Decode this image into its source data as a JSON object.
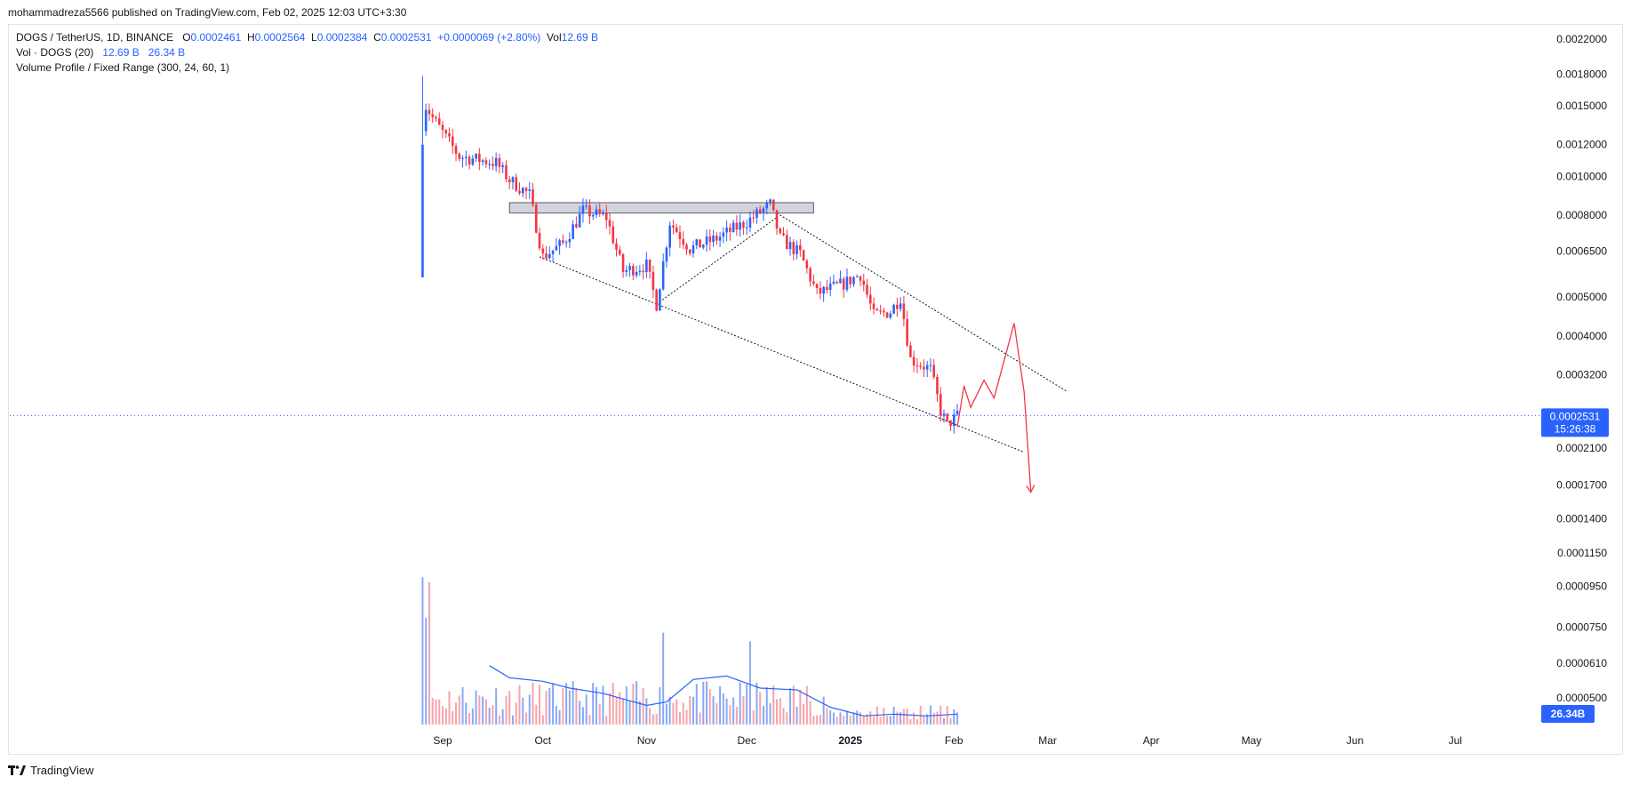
{
  "header": {
    "published_line": "mohammadreza5566 published on TradingView.com, Feb 02, 2025 12:03 UTC+3:30"
  },
  "legend": {
    "symbol": "DOGS / TetherUS, 1D, BINANCE",
    "open_label": "O",
    "open": "0.0002461",
    "high_label": "H",
    "high": "0.0002564",
    "low_label": "L",
    "low": "0.0002384",
    "close_label": "C",
    "close": "0.0002531",
    "change": "+0.0000069 (+2.80%)",
    "vol_label": "Vol",
    "vol": "12.69 B",
    "vol_indicator": "Vol · DOGS (20)",
    "vol_value": "12.69 B",
    "vol_ma": "26.34 B",
    "volume_profile": "Volume Profile / Fixed Range (300, 24, 60, 1)"
  },
  "chart_data": {
    "type": "candlestick",
    "symbol": "DOGS / TetherUS",
    "interval": "1D",
    "exchange": "BINANCE",
    "price_scale": "log",
    "y_ticks": [
      "0.0022000",
      "0.0018000",
      "0.0015000",
      "0.0012000",
      "0.0010000",
      "0.0008000",
      "0.0006500",
      "0.0005000",
      "0.0004000",
      "0.0003200",
      "0.0002100",
      "0.0001700",
      "0.0001400",
      "0.0001150",
      "0.0000950",
      "0.0000750",
      "0.0000610",
      "0.0000500"
    ],
    "x_ticks": [
      "Sep",
      "Oct",
      "Nov",
      "Dec",
      "2025",
      "Feb",
      "Mar",
      "Apr",
      "May",
      "Jun",
      "Jul"
    ],
    "last_price": "0.0002531",
    "countdown": "15:26:38",
    "volume_ma_value": "26.34B",
    "price_path": [
      {
        "date": "2024-08-26",
        "price": 0.00135
      },
      {
        "date": "2024-08-27",
        "price": 0.0015
      },
      {
        "date": "2024-08-29",
        "price": 0.0014
      },
      {
        "date": "2024-09-02",
        "price": 0.00125
      },
      {
        "date": "2024-09-06",
        "price": 0.00112
      },
      {
        "date": "2024-09-12",
        "price": 0.0011
      },
      {
        "date": "2024-09-17",
        "price": 0.00108
      },
      {
        "date": "2024-09-21",
        "price": 0.00098
      },
      {
        "date": "2024-09-27",
        "price": 0.0009
      },
      {
        "date": "2024-10-01",
        "price": 0.00063
      },
      {
        "date": "2024-10-07",
        "price": 0.00068
      },
      {
        "date": "2024-10-13",
        "price": 0.00082
      },
      {
        "date": "2024-10-20",
        "price": 0.00079
      },
      {
        "date": "2024-10-25",
        "price": 0.00058
      },
      {
        "date": "2024-11-01",
        "price": 0.0006
      },
      {
        "date": "2024-11-04",
        "price": 0.00048
      },
      {
        "date": "2024-11-08",
        "price": 0.00077
      },
      {
        "date": "2024-11-14",
        "price": 0.00066
      },
      {
        "date": "2024-11-22",
        "price": 0.0007
      },
      {
        "date": "2024-12-01",
        "price": 0.00077
      },
      {
        "date": "2024-12-08",
        "price": 0.00085
      },
      {
        "date": "2024-12-11",
        "price": 0.0007
      },
      {
        "date": "2024-12-17",
        "price": 0.00064
      },
      {
        "date": "2024-12-22",
        "price": 0.00051
      },
      {
        "date": "2024-12-30",
        "price": 0.00054
      },
      {
        "date": "2025-01-04",
        "price": 0.00057
      },
      {
        "date": "2025-01-08",
        "price": 0.00045
      },
      {
        "date": "2025-01-13",
        "price": 0.00046
      },
      {
        "date": "2025-01-16",
        "price": 0.0005
      },
      {
        "date": "2025-01-19",
        "price": 0.00035
      },
      {
        "date": "2025-01-25",
        "price": 0.00033
      },
      {
        "date": "2025-01-28",
        "price": 0.00026
      },
      {
        "date": "2025-01-30",
        "price": 0.00024
      },
      {
        "date": "2025-02-02",
        "price": 0.000253
      }
    ],
    "volume_ma": [
      {
        "date": "2024-09-15",
        "v": 0.34
      },
      {
        "date": "2024-09-21",
        "v": 0.27
      },
      {
        "date": "2024-10-01",
        "v": 0.25
      },
      {
        "date": "2024-10-09",
        "v": 0.21
      },
      {
        "date": "2024-10-19",
        "v": 0.18
      },
      {
        "date": "2024-11-01",
        "v": 0.11
      },
      {
        "date": "2024-11-07",
        "v": 0.13
      },
      {
        "date": "2024-11-15",
        "v": 0.26
      },
      {
        "date": "2024-11-25",
        "v": 0.28
      },
      {
        "date": "2024-12-05",
        "v": 0.21
      },
      {
        "date": "2024-12-16",
        "v": 0.2
      },
      {
        "date": "2024-12-26",
        "v": 0.1
      },
      {
        "date": "2025-01-05",
        "v": 0.05
      },
      {
        "date": "2025-01-14",
        "v": 0.06
      },
      {
        "date": "2025-01-24",
        "v": 0.05
      },
      {
        "date": "2025-02-02",
        "v": 0.06
      }
    ],
    "resistance_zone": {
      "start": "2024-09-21",
      "end": "2024-12-21",
      "top": 0.00086,
      "bottom": 0.00081
    },
    "lower_channel_line": {
      "start": {
        "date": "2024-09-30",
        "price": 0.00063
      },
      "end": {
        "date": "2025-02-22",
        "price": 0.000205
      }
    },
    "upper_channel_line": {
      "start": {
        "date": "2024-12-10",
        "price": 0.00081
      },
      "end": {
        "date": "2025-03-07",
        "price": 0.00029
      }
    },
    "rising_line": {
      "start": {
        "date": "2024-11-04",
        "price": 0.00048
      },
      "end": {
        "date": "2024-12-10",
        "price": 0.00079
      }
    },
    "projection_path": [
      {
        "date": "2025-02-02",
        "price": 0.000237
      },
      {
        "date": "2025-02-04",
        "price": 0.0003
      },
      {
        "date": "2025-02-06",
        "price": 0.000265
      },
      {
        "date": "2025-02-10",
        "price": 0.00031
      },
      {
        "date": "2025-02-13",
        "price": 0.00028
      },
      {
        "date": "2025-02-19",
        "price": 0.00043
      },
      {
        "date": "2025-02-22",
        "price": 0.00029
      },
      {
        "date": "2025-02-24",
        "price": 0.000163
      }
    ],
    "colors": {
      "up": "#2962ff",
      "down": "#f23645",
      "volume_up": "#8aa8f5",
      "volume_down": "#f7a3aa",
      "ma": "#2962ff",
      "projection": "#f23645",
      "price_line": "#2962ff"
    }
  },
  "brand": {
    "name": "TradingView"
  }
}
